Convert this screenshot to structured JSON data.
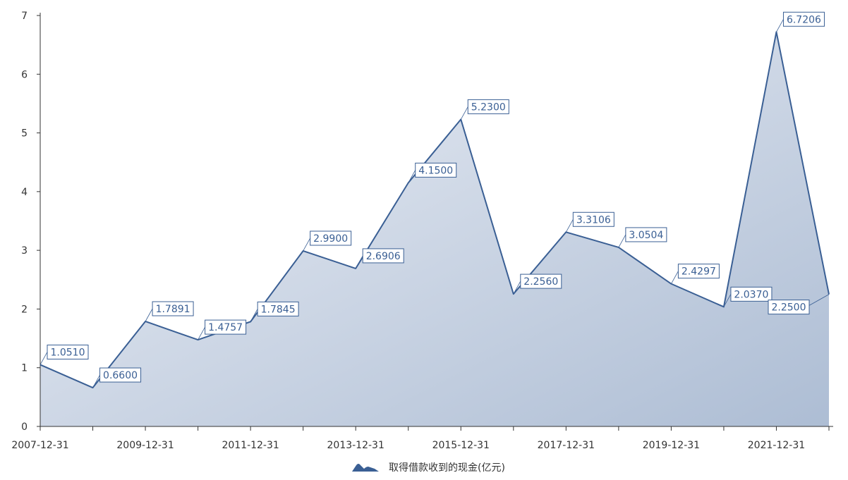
{
  "chart_data": {
    "type": "area",
    "title": "",
    "xlabel": "",
    "ylabel": "",
    "x": [
      "2007-12-31",
      "2008-12-31",
      "2009-12-31",
      "2010-12-31",
      "2011-12-31",
      "2012-12-31",
      "2013-12-31",
      "2014-12-31",
      "2015-12-31",
      "2016-12-31",
      "2017-12-31",
      "2018-12-31",
      "2019-12-31",
      "2020-12-31",
      "2021-12-31",
      "2022-12-31"
    ],
    "x_tick_labels": [
      "2007-12-31",
      "2009-12-31",
      "2011-12-31",
      "2013-12-31",
      "2015-12-31",
      "2017-12-31",
      "2019-12-31",
      "2021-12-31"
    ],
    "y_ticks": [
      0,
      1,
      2,
      3,
      4,
      5,
      6,
      7
    ],
    "ylim": [
      0,
      7
    ],
    "grid": false,
    "legend_position": "bottom-center",
    "series": [
      {
        "name": "取得借款收到的现金(亿元)",
        "color": "#3a5f94",
        "values": [
          1.051,
          0.66,
          1.7891,
          1.4757,
          1.7845,
          2.99,
          2.6906,
          4.15,
          5.23,
          2.256,
          3.3106,
          3.0504,
          2.4297,
          2.037,
          6.7206,
          2.25
        ],
        "labels": [
          "1.0510",
          "0.6600",
          "1.7891",
          "1.4757",
          "1.7845",
          "2.9900",
          "2.6906",
          "4.1500",
          "5.2300",
          "2.2560",
          "3.3106",
          "3.0504",
          "2.4297",
          "2.0370",
          "6.7206",
          "2.2500"
        ]
      }
    ]
  }
}
